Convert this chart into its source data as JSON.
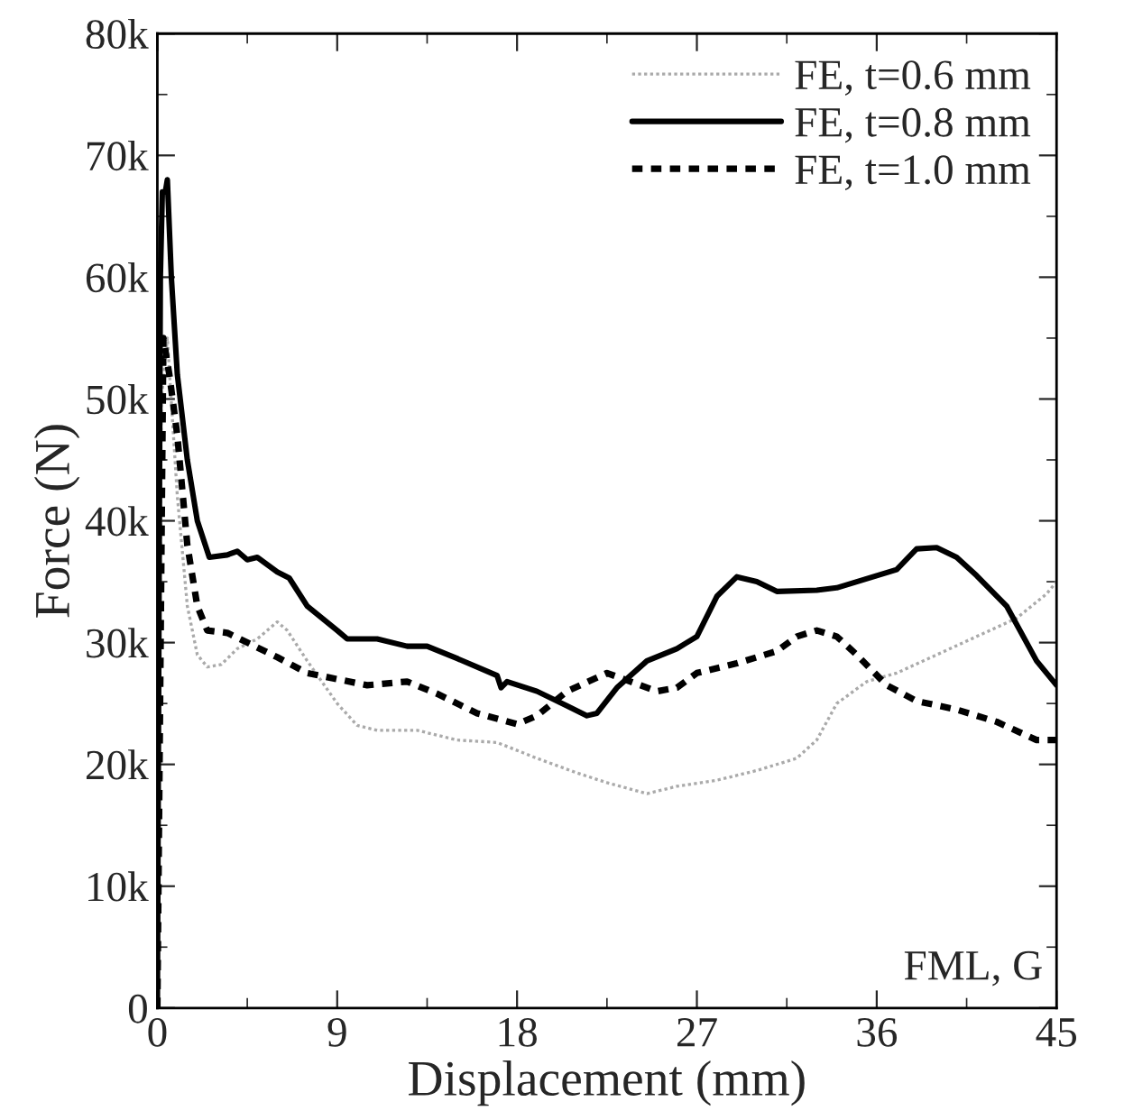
{
  "chart_data": {
    "type": "line",
    "xlabel": "Displacement (mm)",
    "ylabel": "Force (N)",
    "xlim": [
      0,
      45
    ],
    "ylim": [
      0,
      80000
    ],
    "xticks": [
      0,
      9,
      18,
      27,
      36,
      45
    ],
    "yticks": [
      {
        "value": 0,
        "label": "0"
      },
      {
        "value": 10000,
        "label": "10k"
      },
      {
        "value": 20000,
        "label": "20k"
      },
      {
        "value": 30000,
        "label": "30k"
      },
      {
        "value": 40000,
        "label": "40k"
      },
      {
        "value": 50000,
        "label": "50k"
      },
      {
        "value": 60000,
        "label": "60k"
      },
      {
        "value": 70000,
        "label": "70k"
      },
      {
        "value": 80000,
        "label": "80k"
      }
    ],
    "legend": "top right",
    "grid": false,
    "annotations": [
      "FML, G"
    ],
    "series": [
      {
        "name": "FE, t=0.6 mm",
        "color": "#aaaaaa",
        "line_style": "dotted",
        "x": [
          0,
          0.2,
          0.5,
          1,
          1.5,
          2,
          2.5,
          3.2,
          4,
          5,
          6,
          6.5,
          7.5,
          9,
          10,
          11,
          13,
          15,
          17,
          19,
          21,
          22.5,
          24.5,
          26,
          28,
          30,
          32,
          33,
          34,
          35.5,
          37,
          39,
          41,
          43,
          44.5,
          45
        ],
        "values": [
          0,
          50000,
          55000,
          42000,
          33000,
          29000,
          28000,
          28200,
          29500,
          30300,
          31700,
          31000,
          28500,
          25000,
          23200,
          22800,
          22800,
          22000,
          21800,
          20500,
          19300,
          18500,
          17600,
          18200,
          18700,
          19500,
          20500,
          22000,
          25000,
          26800,
          27500,
          29000,
          30500,
          32000,
          34000,
          35000
        ]
      },
      {
        "name": "FE, t=0.8 mm",
        "color": "#000000",
        "line_style": "solid",
        "x": [
          0,
          0.15,
          0.25,
          0.4,
          0.5,
          0.7,
          1,
          1.5,
          2,
          2.6,
          3.5,
          4,
          4.5,
          5,
          6,
          6.6,
          7.5,
          9,
          9.5,
          11,
          12.5,
          13.5,
          15,
          17,
          17.2,
          17.5,
          19,
          20.5,
          21.5,
          22,
          23,
          24.5,
          26,
          27,
          28,
          29,
          30,
          31,
          33,
          34,
          36,
          37,
          38,
          39,
          40,
          41,
          42.5,
          44,
          45
        ],
        "values": [
          0,
          60000,
          67000,
          67000,
          68000,
          60000,
          52000,
          45000,
          40000,
          37000,
          37200,
          37500,
          36800,
          37000,
          35800,
          35300,
          33000,
          31000,
          30300,
          30300,
          29700,
          29700,
          28700,
          27300,
          26300,
          26800,
          26000,
          24800,
          24000,
          24200,
          26300,
          28500,
          29500,
          30500,
          33800,
          35400,
          35000,
          34200,
          34300,
          34500,
          35500,
          36000,
          37700,
          37800,
          37000,
          35500,
          33000,
          28500,
          26500
        ]
      },
      {
        "name": "FE, t=1.0 mm",
        "color": "#000000",
        "line_style": "dashed",
        "x": [
          0,
          0.3,
          0.6,
          1,
          1.5,
          2,
          2.5,
          3.5,
          4.5,
          6,
          7.5,
          9,
          10.5,
          12.5,
          14,
          16,
          18,
          19,
          20.5,
          22.5,
          24,
          25,
          26,
          27,
          29,
          31,
          32,
          33,
          34,
          35,
          36.5,
          38,
          40,
          42,
          44,
          45
        ],
        "values": [
          0,
          55000,
          52000,
          47000,
          38000,
          33000,
          31000,
          30800,
          30000,
          28800,
          27500,
          27000,
          26500,
          26800,
          25800,
          24200,
          23300,
          24000,
          26000,
          27500,
          26600,
          26000,
          26300,
          27500,
          28300,
          29300,
          30500,
          31000,
          30500,
          29000,
          26500,
          25200,
          24500,
          23500,
          22000,
          22000
        ]
      }
    ]
  }
}
